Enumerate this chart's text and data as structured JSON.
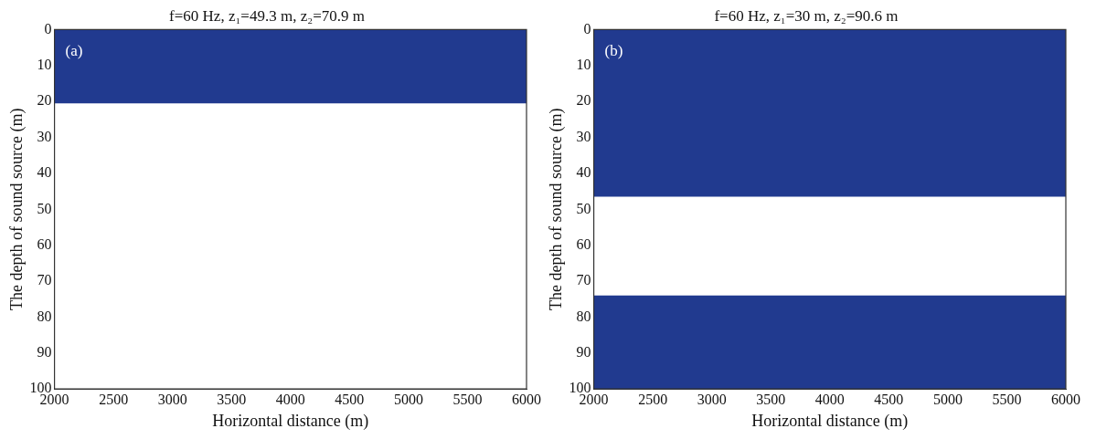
{
  "chart_data": [
    {
      "type": "area",
      "title": "f=60 Hz, z₁=49.3 m, z₂=70.9 m",
      "xlabel": "Horizontal distance (m)",
      "ylabel": "The depth of sound source (m)",
      "annotations": [
        "(a)"
      ],
      "xlim": [
        2000,
        6000
      ],
      "xticks": [
        2000,
        2500,
        3000,
        3500,
        4000,
        4500,
        5000,
        5500,
        6000
      ],
      "ylim": [
        100,
        0
      ],
      "yticks": [
        0,
        10,
        20,
        30,
        40,
        50,
        60,
        70,
        80,
        90,
        100
      ],
      "grid": false,
      "legend": false,
      "bands": [
        {
          "axis": "y",
          "from": 0,
          "to": 20.5,
          "color": "#213a8f"
        }
      ]
    },
    {
      "type": "area",
      "title": "f=60 Hz, z₁=30 m, z₂=90.6 m",
      "xlabel": "Horizontal distance (m)",
      "ylabel": "The depth of sound source (m)",
      "annotations": [
        "(b)"
      ],
      "xlim": [
        2000,
        6000
      ],
      "xticks": [
        2000,
        2500,
        3000,
        3500,
        4000,
        4500,
        5000,
        5500,
        6000
      ],
      "ylim": [
        100,
        0
      ],
      "yticks": [
        0,
        10,
        20,
        30,
        40,
        50,
        60,
        70,
        80,
        90,
        100
      ],
      "grid": false,
      "legend": false,
      "bands": [
        {
          "axis": "y",
          "from": 0,
          "to": 46.5,
          "color": "#213a8f"
        },
        {
          "axis": "y",
          "from": 74,
          "to": 100,
          "color": "#213a8f"
        }
      ]
    }
  ]
}
